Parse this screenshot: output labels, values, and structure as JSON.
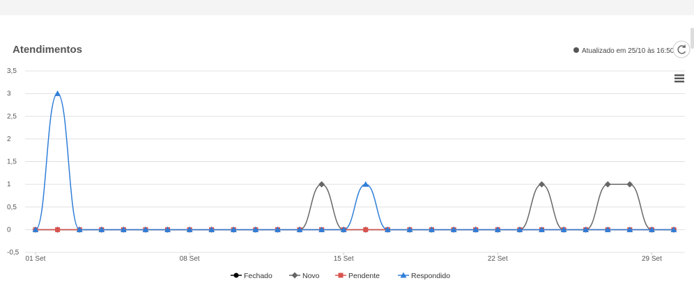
{
  "chart_data": {
    "type": "line",
    "title": "Atendimentos",
    "subtitle": "Atualizado em 25/10 às 16:50",
    "categories": [
      "01 Set",
      null,
      null,
      null,
      null,
      null,
      null,
      "08 Set",
      null,
      null,
      null,
      null,
      null,
      null,
      "15 Set",
      null,
      null,
      null,
      null,
      null,
      null,
      "22 Set",
      null,
      null,
      null,
      null,
      null,
      null,
      "29 Set",
      null
    ],
    "ylim": [
      -0.5,
      3.5
    ],
    "yticks": [
      {
        "value": -0.5,
        "label": "-0,5"
      },
      0,
      {
        "value": 0.5,
        "label": "0,5"
      },
      1,
      {
        "value": 1.5,
        "label": "1,5"
      },
      2,
      {
        "value": 2.5,
        "label": "2,5"
      },
      3,
      {
        "value": 3.5,
        "label": "3,5"
      }
    ],
    "grid": true,
    "smooth": true,
    "legend": "bottom",
    "series": [
      {
        "name": "Fechado",
        "color": "#000000",
        "symbol": "circle",
        "values": [
          0,
          0,
          0,
          0,
          0,
          0,
          0,
          0,
          0,
          0,
          0,
          0,
          0,
          0,
          0,
          0,
          0,
          0,
          0,
          0,
          0,
          0,
          0,
          0,
          0,
          0,
          0,
          0,
          0,
          0
        ]
      },
      {
        "name": "Novo",
        "color": "#666666",
        "symbol": "diamond",
        "values": [
          0,
          0,
          0,
          0,
          0,
          0,
          0,
          0,
          0,
          0,
          0,
          0,
          0,
          1,
          0,
          0,
          0,
          0,
          0,
          0,
          0,
          0,
          0,
          1,
          0,
          0,
          1,
          1,
          0,
          0
        ]
      },
      {
        "name": "Pendente",
        "color": "#d9534f",
        "symbol": "square",
        "values": [
          0,
          0,
          0,
          0,
          0,
          0,
          0,
          0,
          0,
          0,
          0,
          0,
          0,
          0,
          0,
          0,
          0,
          0,
          0,
          0,
          0,
          0,
          0,
          0,
          0,
          0,
          0,
          0,
          0,
          0
        ]
      },
      {
        "name": "Respondido",
        "color": "#2f7ed8",
        "symbol": "triangle",
        "values": [
          0,
          3,
          0,
          0,
          0,
          0,
          0,
          0,
          0,
          0,
          0,
          0,
          0,
          0,
          0,
          1,
          0,
          0,
          0,
          0,
          0,
          0,
          0,
          0,
          0,
          0,
          0,
          0,
          0,
          0
        ]
      }
    ]
  }
}
